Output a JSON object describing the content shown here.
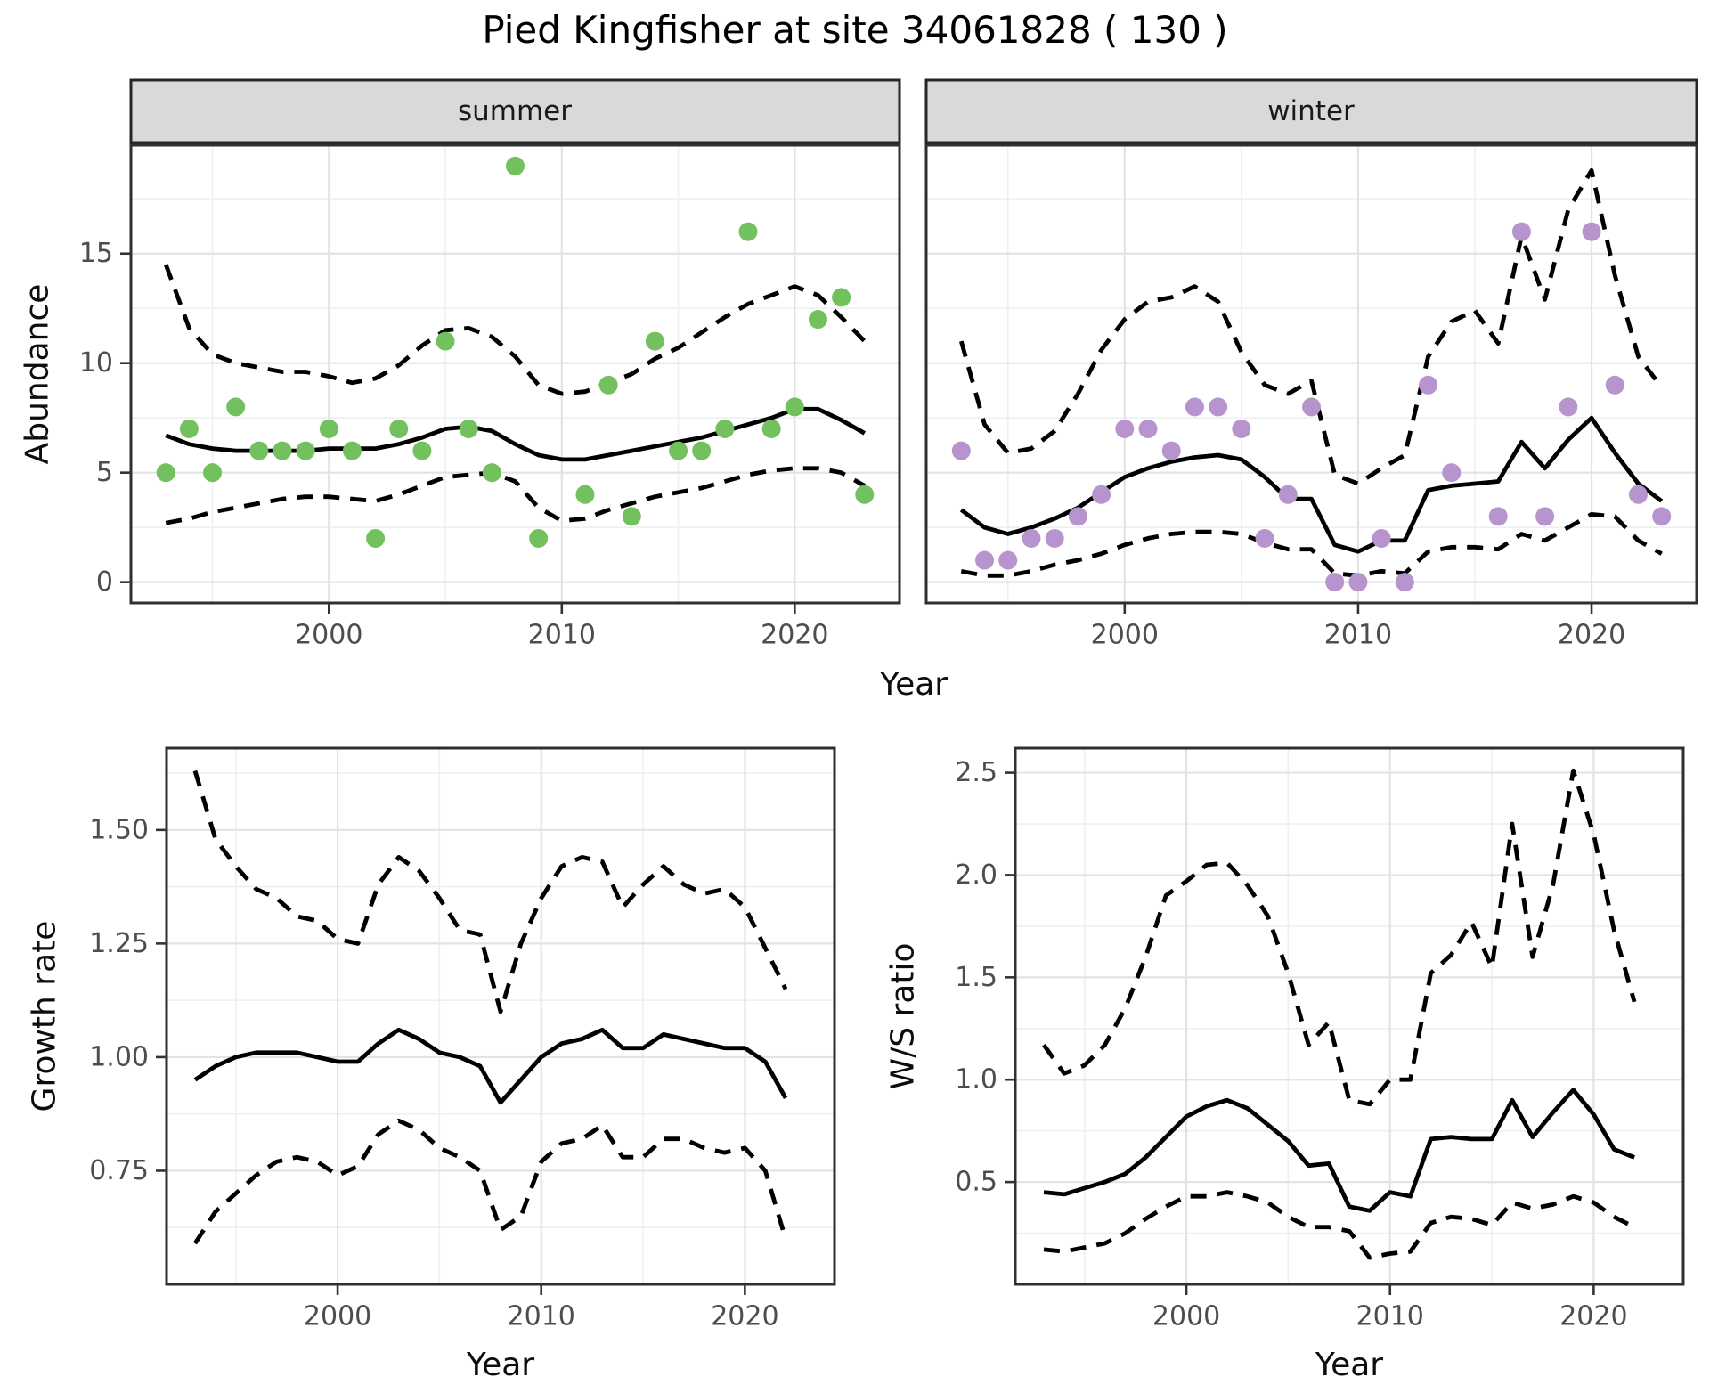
{
  "title": "Pied Kingfisher at site 34061828 ( 130 )",
  "top_row": {
    "facets": [
      {
        "label": "summer"
      },
      {
        "label": "winter"
      }
    ],
    "ylabel": "Abundance",
    "xlabel": "Year"
  },
  "bottom_row": {
    "left": {
      "ylabel": "Growth rate",
      "xlabel": "Year"
    },
    "right": {
      "ylabel": "W/S ratio",
      "xlabel": "Year"
    }
  },
  "style": {
    "summer_point_color": "#73c05e",
    "winter_point_color": "#b894ce",
    "line_color": "#000000",
    "grid_major_color": "#e3e3e3",
    "grid_minor_color": "#efefef",
    "strip_bg": "#d9d9d9",
    "strip_border": "#262626",
    "panel_border": "#2f2f2f",
    "tick_color": "#333333",
    "tick_text_color": "#4d4d4d"
  },
  "chart_data": [
    {
      "id": "abundance_summer",
      "type": "scatter",
      "facet": "summer",
      "xlabel": "Year",
      "ylabel": "Abundance",
      "xlim": [
        1991.5,
        2024.5
      ],
      "ylim": [
        -0.95,
        19.95
      ],
      "x_ticks": {
        "values": [
          2000,
          2010,
          2020
        ],
        "labels": [
          "2000",
          "2010",
          "2020"
        ]
      },
      "y_ticks": {
        "values": [
          0,
          5,
          10,
          15
        ],
        "labels": [
          "0",
          "5",
          "10",
          "15"
        ]
      },
      "x_minor": [
        1995,
        2005,
        2015
      ],
      "y_minor": [
        2.5,
        7.5,
        12.5,
        17.5
      ],
      "point_color": "#73c05e",
      "points": [
        [
          1993,
          5
        ],
        [
          1994,
          7
        ],
        [
          1995,
          5
        ],
        [
          1996,
          8
        ],
        [
          1997,
          6
        ],
        [
          1998,
          6
        ],
        [
          1999,
          6
        ],
        [
          2000,
          7
        ],
        [
          2001,
          6
        ],
        [
          2002,
          2
        ],
        [
          2003,
          7
        ],
        [
          2004,
          6
        ],
        [
          2005,
          11
        ],
        [
          2006,
          7
        ],
        [
          2007,
          5
        ],
        [
          2008,
          19
        ],
        [
          2009,
          2
        ],
        [
          2011,
          4
        ],
        [
          2012,
          9
        ],
        [
          2013,
          3
        ],
        [
          2014,
          11
        ],
        [
          2015,
          6
        ],
        [
          2016,
          6
        ],
        [
          2017,
          7
        ],
        [
          2018,
          16
        ],
        [
          2019,
          7
        ],
        [
          2020,
          8
        ],
        [
          2021,
          12
        ],
        [
          2022,
          13
        ],
        [
          2023,
          4
        ]
      ],
      "years": [
        1993,
        1994,
        1995,
        1996,
        1997,
        1998,
        1999,
        2000,
        2001,
        2002,
        2003,
        2004,
        2005,
        2006,
        2007,
        2008,
        2009,
        2010,
        2011,
        2012,
        2013,
        2014,
        2015,
        2016,
        2017,
        2018,
        2019,
        2020,
        2021,
        2022,
        2023
      ],
      "trend": [
        6.7,
        6.3,
        6.1,
        6.0,
        6.0,
        6.0,
        6.0,
        6.1,
        6.1,
        6.1,
        6.3,
        6.6,
        7.0,
        7.1,
        6.9,
        6.3,
        5.8,
        5.6,
        5.6,
        5.8,
        6.0,
        6.2,
        6.4,
        6.6,
        6.9,
        7.2,
        7.5,
        7.9,
        7.9,
        7.4,
        6.8
      ],
      "ci_upper": [
        14.5,
        11.6,
        10.4,
        10.0,
        9.8,
        9.6,
        9.6,
        9.4,
        9.1,
        9.3,
        9.9,
        10.8,
        11.5,
        11.6,
        11.2,
        10.3,
        9.0,
        8.6,
        8.7,
        9.1,
        9.5,
        10.2,
        10.7,
        11.4,
        12.1,
        12.7,
        13.1,
        13.5,
        13.1,
        12.1,
        11.0
      ],
      "ci_lower": [
        2.7,
        2.9,
        3.2,
        3.4,
        3.6,
        3.8,
        3.9,
        3.9,
        3.8,
        3.7,
        4.0,
        4.4,
        4.8,
        4.9,
        5.0,
        4.6,
        3.4,
        2.8,
        2.9,
        3.3,
        3.6,
        3.9,
        4.1,
        4.3,
        4.6,
        4.9,
        5.1,
        5.2,
        5.2,
        5.0,
        4.4
      ]
    },
    {
      "id": "abundance_winter",
      "type": "scatter",
      "facet": "winter",
      "xlabel": "Year",
      "ylabel": "Abundance",
      "xlim": [
        1991.5,
        2024.5
      ],
      "ylim": [
        -0.95,
        19.95
      ],
      "x_ticks": {
        "values": [
          2000,
          2010,
          2020
        ],
        "labels": [
          "2000",
          "2010",
          "2020"
        ]
      },
      "y_ticks": {
        "values": [
          0,
          5,
          10,
          15
        ],
        "labels": [
          "0",
          "5",
          "10",
          "15"
        ]
      },
      "x_minor": [
        1995,
        2005,
        2015
      ],
      "y_minor": [
        2.5,
        7.5,
        12.5,
        17.5
      ],
      "point_color": "#b894ce",
      "points": [
        [
          1993,
          6
        ],
        [
          1994,
          1
        ],
        [
          1995,
          1
        ],
        [
          1996,
          2
        ],
        [
          1997,
          2
        ],
        [
          1998,
          3
        ],
        [
          1999,
          4
        ],
        [
          2000,
          7
        ],
        [
          2001,
          7
        ],
        [
          2002,
          6
        ],
        [
          2003,
          8
        ],
        [
          2004,
          8
        ],
        [
          2005,
          7
        ],
        [
          2006,
          2
        ],
        [
          2007,
          4
        ],
        [
          2008,
          8
        ],
        [
          2009,
          0
        ],
        [
          2010,
          0
        ],
        [
          2011,
          2
        ],
        [
          2012,
          0
        ],
        [
          2013,
          9
        ],
        [
          2014,
          5
        ],
        [
          2016,
          3
        ],
        [
          2017,
          16
        ],
        [
          2018,
          3
        ],
        [
          2019,
          8
        ],
        [
          2020,
          16
        ],
        [
          2021,
          9
        ],
        [
          2022,
          4
        ],
        [
          2023,
          3
        ]
      ],
      "years": [
        1993,
        1994,
        1995,
        1996,
        1997,
        1998,
        1999,
        2000,
        2001,
        2002,
        2003,
        2004,
        2005,
        2006,
        2007,
        2008,
        2009,
        2010,
        2011,
        2012,
        2013,
        2014,
        2015,
        2016,
        2017,
        2018,
        2019,
        2020,
        2021,
        2022,
        2023
      ],
      "trend": [
        3.3,
        2.5,
        2.2,
        2.5,
        2.9,
        3.4,
        4.1,
        4.8,
        5.2,
        5.5,
        5.7,
        5.8,
        5.6,
        4.8,
        3.8,
        3.8,
        1.7,
        1.4,
        1.9,
        1.9,
        4.2,
        4.4,
        4.5,
        4.6,
        6.4,
        5.2,
        6.5,
        7.5,
        5.9,
        4.5,
        3.7
      ],
      "ci_upper": [
        11.0,
        7.2,
        5.9,
        6.1,
        6.9,
        8.6,
        10.6,
        12.0,
        12.8,
        13.0,
        13.5,
        12.8,
        10.5,
        9.0,
        8.6,
        9.2,
        4.9,
        4.5,
        5.2,
        5.8,
        10.3,
        11.9,
        12.4,
        10.9,
        15.8,
        12.9,
        17.0,
        18.8,
        14.0,
        10.3,
        8.9
      ],
      "ci_lower": [
        0.5,
        0.3,
        0.3,
        0.5,
        0.8,
        1.0,
        1.3,
        1.7,
        2.0,
        2.2,
        2.3,
        2.3,
        2.2,
        1.8,
        1.5,
        1.5,
        0.4,
        0.3,
        0.5,
        0.4,
        1.4,
        1.6,
        1.6,
        1.5,
        2.2,
        1.9,
        2.5,
        3.1,
        3.0,
        1.9,
        1.3
      ]
    },
    {
      "id": "growth_rate",
      "type": "line",
      "xlabel": "Year",
      "ylabel": "Growth rate",
      "xlim": [
        1991.6,
        2024.4
      ],
      "ylim": [
        0.5,
        1.68
      ],
      "x_ticks": {
        "values": [
          2000,
          2010,
          2020
        ],
        "labels": [
          "2000",
          "2010",
          "2020"
        ]
      },
      "y_ticks": {
        "values": [
          0.75,
          1.0,
          1.25,
          1.5
        ],
        "labels": [
          "0.75",
          "1.00",
          "1.25",
          "1.50"
        ]
      },
      "x_minor": [
        1995,
        2005,
        2015
      ],
      "y_minor": [
        0.625,
        0.875,
        1.125,
        1.375,
        1.625
      ],
      "years": [
        1993,
        1994,
        1995,
        1996,
        1997,
        1998,
        1999,
        2000,
        2001,
        2002,
        2003,
        2004,
        2005,
        2006,
        2007,
        2008,
        2009,
        2010,
        2011,
        2012,
        2013,
        2014,
        2015,
        2016,
        2017,
        2018,
        2019,
        2020,
        2021,
        2022
      ],
      "trend": [
        0.95,
        0.98,
        1.0,
        1.01,
        1.01,
        1.01,
        1.0,
        0.99,
        0.99,
        1.03,
        1.06,
        1.04,
        1.01,
        1.0,
        0.98,
        0.9,
        0.95,
        1.0,
        1.03,
        1.04,
        1.06,
        1.02,
        1.02,
        1.05,
        1.04,
        1.03,
        1.02,
        1.02,
        0.99,
        0.91
      ],
      "ci_upper": [
        1.63,
        1.48,
        1.42,
        1.37,
        1.35,
        1.31,
        1.3,
        1.26,
        1.25,
        1.38,
        1.44,
        1.41,
        1.35,
        1.28,
        1.27,
        1.1,
        1.25,
        1.35,
        1.42,
        1.44,
        1.43,
        1.33,
        1.38,
        1.42,
        1.38,
        1.36,
        1.37,
        1.33,
        1.24,
        1.15
      ],
      "ci_lower": [
        0.59,
        0.66,
        0.7,
        0.74,
        0.77,
        0.78,
        0.77,
        0.74,
        0.76,
        0.83,
        0.86,
        0.84,
        0.8,
        0.78,
        0.75,
        0.62,
        0.65,
        0.77,
        0.81,
        0.82,
        0.85,
        0.78,
        0.78,
        0.82,
        0.82,
        0.8,
        0.79,
        0.8,
        0.75,
        0.6
      ]
    },
    {
      "id": "ws_ratio",
      "type": "line",
      "xlabel": "Year",
      "ylabel": "W/S ratio",
      "xlim": [
        1991.6,
        2024.4
      ],
      "ylim": [
        0.0,
        2.62
      ],
      "x_ticks": {
        "values": [
          2000,
          2010,
          2020
        ],
        "labels": [
          "2000",
          "2010",
          "2020"
        ]
      },
      "y_ticks": {
        "values": [
          0.5,
          1.0,
          1.5,
          2.0,
          2.5
        ],
        "labels": [
          "0.5",
          "1.0",
          "1.5",
          "2.0",
          "2.5"
        ]
      },
      "x_minor": [
        1995,
        2005,
        2015
      ],
      "y_minor": [
        0.25,
        0.75,
        1.25,
        1.75,
        2.25
      ],
      "years": [
        1993,
        1994,
        1995,
        1996,
        1997,
        1998,
        1999,
        2000,
        2001,
        2002,
        2003,
        2004,
        2005,
        2006,
        2007,
        2008,
        2009,
        2010,
        2011,
        2012,
        2013,
        2014,
        2015,
        2016,
        2017,
        2018,
        2019,
        2020,
        2021,
        2022
      ],
      "trend": [
        0.45,
        0.44,
        0.47,
        0.5,
        0.54,
        0.62,
        0.72,
        0.82,
        0.87,
        0.9,
        0.86,
        0.78,
        0.7,
        0.58,
        0.59,
        0.38,
        0.36,
        0.45,
        0.43,
        0.71,
        0.72,
        0.71,
        0.71,
        0.9,
        0.72,
        0.84,
        0.95,
        0.83,
        0.66,
        0.62
      ],
      "ci_upper": [
        1.17,
        1.03,
        1.07,
        1.17,
        1.35,
        1.6,
        1.9,
        1.97,
        2.05,
        2.06,
        1.95,
        1.8,
        1.52,
        1.17,
        1.28,
        0.9,
        0.88,
        1.0,
        1.0,
        1.52,
        1.61,
        1.77,
        1.55,
        2.25,
        1.6,
        1.95,
        2.51,
        2.2,
        1.73,
        1.38
      ],
      "ci_lower": [
        0.17,
        0.16,
        0.18,
        0.2,
        0.25,
        0.32,
        0.38,
        0.43,
        0.43,
        0.45,
        0.43,
        0.4,
        0.33,
        0.28,
        0.28,
        0.26,
        0.13,
        0.15,
        0.16,
        0.3,
        0.33,
        0.32,
        0.29,
        0.4,
        0.37,
        0.39,
        0.43,
        0.4,
        0.33,
        0.28
      ]
    }
  ]
}
